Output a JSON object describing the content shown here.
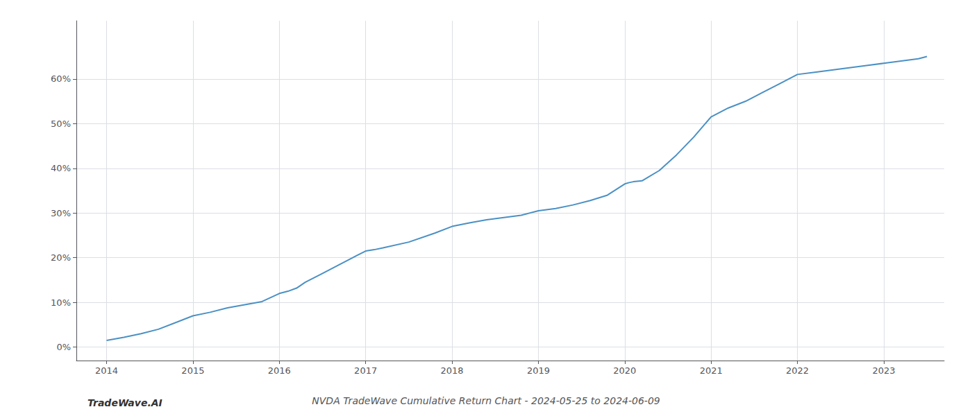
{
  "chart_data": {
    "type": "line",
    "title": "NVDA TradeWave Cumulative Return Chart - 2024-05-25 to 2024-06-09",
    "annotations": [
      "TradeWave.AI"
    ],
    "color": "#4a90c4",
    "x": [
      2014.0,
      2014.2,
      2014.4,
      2014.6,
      2014.8,
      2015.0,
      2015.2,
      2015.4,
      2015.6,
      2015.8,
      2016.0,
      2016.1,
      2016.2,
      2016.3,
      2016.5,
      2016.7,
      2016.9,
      2017.0,
      2017.1,
      2017.2,
      2017.5,
      2017.8,
      2018.0,
      2018.2,
      2018.4,
      2018.6,
      2018.8,
      2019.0,
      2019.2,
      2019.4,
      2019.6,
      2019.8,
      2020.0,
      2020.05,
      2020.1,
      2020.2,
      2020.4,
      2020.6,
      2020.8,
      2021.0,
      2021.2,
      2021.4,
      2021.6,
      2021.8,
      2022.0,
      2022.2,
      2022.4,
      2022.6,
      2022.8,
      2023.0,
      2023.2,
      2023.4,
      2023.5
    ],
    "values": [
      1.5,
      2.2,
      3.0,
      4.0,
      5.5,
      7.0,
      7.8,
      8.8,
      9.5,
      10.2,
      12.0,
      12.5,
      13.2,
      14.5,
      16.5,
      18.5,
      20.5,
      21.5,
      21.8,
      22.2,
      23.5,
      25.5,
      27.0,
      27.8,
      28.5,
      29.0,
      29.5,
      30.5,
      31.0,
      31.8,
      32.8,
      34.0,
      36.5,
      36.8,
      37.0,
      37.2,
      39.5,
      43.0,
      47.0,
      51.5,
      53.5,
      55.0,
      57.0,
      59.0,
      61.0,
      61.5,
      62.0,
      62.5,
      63.0,
      63.5,
      64.0,
      64.5,
      65.0
    ],
    "xlim": [
      2013.65,
      2023.7
    ],
    "xticks": [
      2014,
      2015,
      2016,
      2017,
      2018,
      2019,
      2020,
      2021,
      2022,
      2023
    ],
    "ylim": [
      -3,
      73
    ],
    "yticks": [
      {
        "value": 0,
        "label": "0%"
      },
      {
        "value": 10,
        "label": "10%"
      },
      {
        "value": 20,
        "label": "20%"
      },
      {
        "value": 30,
        "label": "30%"
      },
      {
        "value": 40,
        "label": "40%"
      },
      {
        "value": 50,
        "label": "50%"
      },
      {
        "value": 60,
        "label": "60%"
      }
    ],
    "grid": true
  }
}
